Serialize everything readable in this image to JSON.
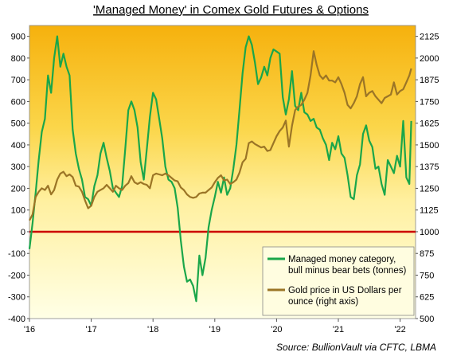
{
  "chart_data": {
    "type": "line",
    "title": "'Managed Money' in Comex Gold Futures & Options",
    "source": "Source: BullionVault via CFTC, LBMA",
    "x_ticks": [
      "'16",
      "'17",
      "'18",
      "'19",
      "'20",
      "'21",
      "'22"
    ],
    "x_range": [
      2016.0,
      2022.25
    ],
    "left_axis": {
      "range": [
        -400,
        950
      ],
      "ticks": [
        -400,
        -300,
        -200,
        -100,
        0,
        100,
        200,
        300,
        400,
        500,
        600,
        700,
        800,
        900
      ]
    },
    "right_axis": {
      "range": [
        500,
        2187.5
      ],
      "ticks": [
        500,
        625,
        750,
        875,
        1000,
        1125,
        1250,
        1375,
        1500,
        1625,
        1750,
        1875,
        2000,
        2125
      ]
    },
    "series": [
      {
        "name": "Managed money category, bull minus bear bets (tonnes)",
        "axis": "left",
        "color": "#1aa64a",
        "x": [
          2016.0,
          2016.05,
          2016.1,
          2016.15,
          2016.2,
          2016.25,
          2016.3,
          2016.35,
          2016.4,
          2016.45,
          2016.5,
          2016.55,
          2016.6,
          2016.65,
          2016.7,
          2016.75,
          2016.8,
          2016.85,
          2016.9,
          2016.95,
          2017.0,
          2017.05,
          2017.1,
          2017.15,
          2017.2,
          2017.25,
          2017.3,
          2017.35,
          2017.4,
          2017.45,
          2017.5,
          2017.55,
          2017.6,
          2017.65,
          2017.7,
          2017.75,
          2017.8,
          2017.85,
          2017.9,
          2017.95,
          2018.0,
          2018.05,
          2018.1,
          2018.15,
          2018.2,
          2018.25,
          2018.3,
          2018.35,
          2018.4,
          2018.45,
          2018.5,
          2018.55,
          2018.6,
          2018.65,
          2018.7,
          2018.75,
          2018.8,
          2018.85,
          2018.9,
          2018.95,
          2019.0,
          2019.05,
          2019.1,
          2019.15,
          2019.2,
          2019.25,
          2019.3,
          2019.35,
          2019.4,
          2019.45,
          2019.5,
          2019.55,
          2019.6,
          2019.65,
          2019.7,
          2019.75,
          2019.8,
          2019.85,
          2019.9,
          2019.95,
          2020.0,
          2020.05,
          2020.1,
          2020.15,
          2020.2,
          2020.25,
          2020.3,
          2020.35,
          2020.4,
          2020.45,
          2020.5,
          2020.55,
          2020.6,
          2020.65,
          2020.7,
          2020.75,
          2020.8,
          2020.85,
          2020.9,
          2020.95,
          2021.0,
          2021.05,
          2021.1,
          2021.15,
          2021.2,
          2021.25,
          2021.3,
          2021.35,
          2021.4,
          2021.45,
          2021.5,
          2021.55,
          2021.6,
          2021.65,
          2021.7,
          2021.75,
          2021.8,
          2021.85,
          2021.9,
          2021.95,
          2022.0,
          2022.05,
          2022.1,
          2022.15,
          2022.18
        ],
        "y": [
          -80,
          40,
          180,
          330,
          460,
          520,
          720,
          640,
          800,
          900,
          760,
          820,
          760,
          720,
          470,
          360,
          290,
          240,
          160,
          150,
          120,
          210,
          260,
          360,
          410,
          340,
          280,
          200,
          180,
          160,
          210,
          380,
          560,
          600,
          560,
          480,
          320,
          240,
          380,
          530,
          640,
          610,
          520,
          430,
          300,
          240,
          230,
          200,
          110,
          -40,
          -160,
          -230,
          -220,
          -250,
          -320,
          -110,
          -200,
          -120,
          20,
          100,
          160,
          230,
          180,
          250,
          170,
          200,
          290,
          400,
          560,
          730,
          850,
          900,
          860,
          780,
          680,
          710,
          760,
          720,
          800,
          840,
          830,
          820,
          620,
          540,
          610,
          740,
          580,
          560,
          640,
          550,
          540,
          510,
          520,
          480,
          470,
          430,
          400,
          330,
          410,
          380,
          440,
          360,
          340,
          260,
          160,
          150,
          260,
          310,
          450,
          490,
          420,
          390,
          290,
          300,
          220,
          170,
          330,
          300,
          270,
          350,
          300,
          510,
          250,
          220,
          510
        ]
      },
      {
        "name": "Gold price in US Dollars per ounce (right axis)",
        "axis": "right",
        "color": "#9b7526",
        "x": [
          2016.0,
          2016.05,
          2016.1,
          2016.15,
          2016.2,
          2016.25,
          2016.3,
          2016.35,
          2016.4,
          2016.45,
          2016.5,
          2016.55,
          2016.6,
          2016.65,
          2016.7,
          2016.75,
          2016.8,
          2016.85,
          2016.9,
          2016.95,
          2017.0,
          2017.05,
          2017.1,
          2017.15,
          2017.2,
          2017.25,
          2017.3,
          2017.35,
          2017.4,
          2017.45,
          2017.5,
          2017.55,
          2017.6,
          2017.65,
          2017.7,
          2017.75,
          2017.8,
          2017.85,
          2017.9,
          2017.95,
          2018.0,
          2018.05,
          2018.1,
          2018.15,
          2018.2,
          2018.25,
          2018.3,
          2018.35,
          2018.4,
          2018.45,
          2018.5,
          2018.55,
          2018.6,
          2018.65,
          2018.7,
          2018.75,
          2018.8,
          2018.85,
          2018.9,
          2018.95,
          2019.0,
          2019.05,
          2019.1,
          2019.15,
          2019.2,
          2019.25,
          2019.3,
          2019.35,
          2019.4,
          2019.45,
          2019.5,
          2019.55,
          2019.6,
          2019.65,
          2019.7,
          2019.75,
          2019.8,
          2019.85,
          2019.9,
          2019.95,
          2020.0,
          2020.05,
          2020.1,
          2020.15,
          2020.2,
          2020.25,
          2020.3,
          2020.35,
          2020.4,
          2020.45,
          2020.5,
          2020.55,
          2020.6,
          2020.65,
          2020.7,
          2020.75,
          2020.8,
          2020.85,
          2020.9,
          2020.95,
          2021.0,
          2021.05,
          2021.1,
          2021.15,
          2021.2,
          2021.25,
          2021.3,
          2021.35,
          2021.4,
          2021.45,
          2021.5,
          2021.55,
          2021.6,
          2021.65,
          2021.7,
          2021.75,
          2021.8,
          2021.85,
          2021.9,
          2021.95,
          2022.0,
          2022.05,
          2022.1,
          2022.15,
          2022.18
        ],
        "y": [
          1065,
          1100,
          1200,
          1230,
          1250,
          1240,
          1265,
          1215,
          1240,
          1300,
          1335,
          1345,
          1320,
          1330,
          1315,
          1265,
          1260,
          1230,
          1180,
          1135,
          1150,
          1200,
          1230,
          1240,
          1250,
          1270,
          1250,
          1230,
          1265,
          1250,
          1240,
          1265,
          1280,
          1320,
          1285,
          1275,
          1285,
          1275,
          1270,
          1250,
          1325,
          1335,
          1330,
          1325,
          1335,
          1325,
          1310,
          1295,
          1290,
          1255,
          1240,
          1215,
          1200,
          1195,
          1200,
          1220,
          1225,
          1225,
          1240,
          1255,
          1285,
          1310,
          1325,
          1295,
          1300,
          1275,
          1285,
          1300,
          1340,
          1400,
          1420,
          1510,
          1520,
          1505,
          1495,
          1485,
          1490,
          1465,
          1470,
          1510,
          1550,
          1580,
          1600,
          1640,
          1490,
          1610,
          1700,
          1720,
          1730,
          1760,
          1800,
          1900,
          2040,
          1960,
          1900,
          1880,
          1900,
          1870,
          1870,
          1860,
          1890,
          1850,
          1800,
          1730,
          1710,
          1740,
          1780,
          1850,
          1890,
          1780,
          1800,
          1810,
          1780,
          1760,
          1740,
          1770,
          1780,
          1790,
          1860,
          1790,
          1810,
          1820,
          1860,
          1900,
          1940
        ]
      }
    ],
    "zero_line": {
      "value": 0,
      "color": "#cc0000"
    },
    "legend_placement": "bottom-right",
    "grid": false
  }
}
